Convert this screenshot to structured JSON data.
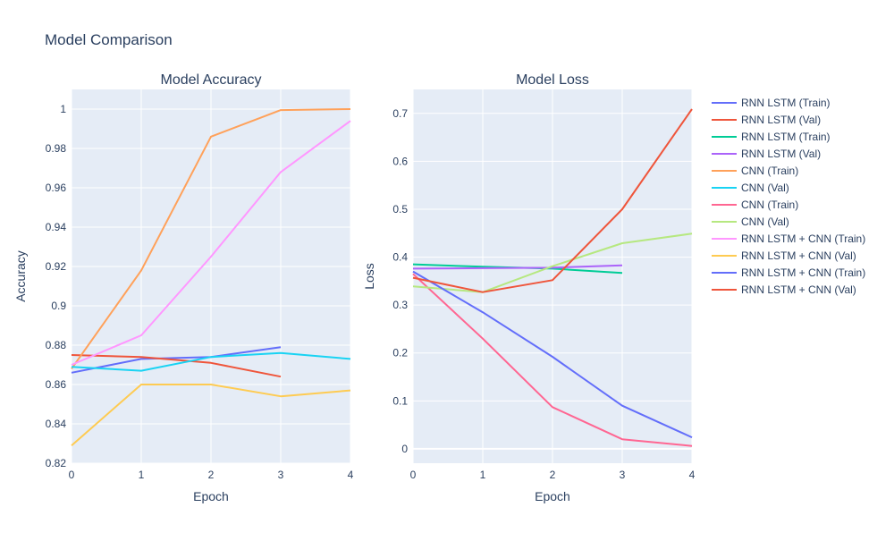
{
  "title": "Model Comparison",
  "colors": {
    "plot_bg": "#e5ecf6",
    "grid": "#ffffff",
    "text": "#2a3f5f"
  },
  "chart_data": [
    {
      "type": "line",
      "title": "Model Accuracy",
      "xlabel": "Epoch",
      "ylabel": "Accuracy",
      "xlim": [
        0,
        4
      ],
      "ylim": [
        0.82,
        1.01
      ],
      "xticks": [
        0,
        1,
        2,
        3,
        4
      ],
      "yticks": [
        0.82,
        0.84,
        0.86,
        0.88,
        0.9,
        0.92,
        0.94,
        0.96,
        0.98,
        1
      ],
      "ytick_labels": [
        "0.82",
        "0.84",
        "0.86",
        "0.88",
        "0.9",
        "0.92",
        "0.94",
        "0.96",
        "0.98",
        "1"
      ],
      "grid": true,
      "series": [
        {
          "name": "RNN LSTM (Train)",
          "color": "#636efa",
          "x": [
            0,
            1,
            2,
            3
          ],
          "y": [
            0.866,
            0.873,
            0.874,
            0.879
          ]
        },
        {
          "name": "RNN LSTM (Val)",
          "color": "#ef553b",
          "x": [
            0,
            1,
            2,
            3
          ],
          "y": [
            0.875,
            0.874,
            0.871,
            0.864
          ]
        },
        {
          "name": "CNN (Train)",
          "color": "#ffa15a",
          "x": [
            0,
            1,
            2,
            3,
            4
          ],
          "y": [
            0.868,
            0.918,
            0.986,
            0.9995,
            1.0
          ]
        },
        {
          "name": "CNN (Val)",
          "color": "#19d3f3",
          "x": [
            0,
            1,
            2,
            3,
            4
          ],
          "y": [
            0.869,
            0.867,
            0.874,
            0.876,
            0.873
          ]
        },
        {
          "name": "RNN LSTM + CNN (Train)",
          "color": "#ff97ff",
          "x": [
            0,
            1,
            2,
            3,
            4
          ],
          "y": [
            0.87,
            0.885,
            0.925,
            0.968,
            0.994
          ]
        },
        {
          "name": "RNN LSTM + CNN (Val)",
          "color": "#fecb52",
          "x": [
            0,
            1,
            2,
            3,
            4
          ],
          "y": [
            0.829,
            0.86,
            0.86,
            0.854,
            0.857
          ]
        }
      ]
    },
    {
      "type": "line",
      "title": "Model Loss",
      "xlabel": "Epoch",
      "ylabel": "Loss",
      "xlim": [
        0,
        4
      ],
      "ylim": [
        -0.03,
        0.75
      ],
      "xticks": [
        0,
        1,
        2,
        3,
        4
      ],
      "yticks": [
        0,
        0.1,
        0.2,
        0.3,
        0.4,
        0.5,
        0.6,
        0.7
      ],
      "ytick_labels": [
        "0",
        "0.1",
        "0.2",
        "0.3",
        "0.4",
        "0.5",
        "0.6",
        "0.7"
      ],
      "grid": true,
      "series": [
        {
          "name": "RNN LSTM (Train)",
          "color": "#00cc96",
          "x": [
            0,
            1,
            2,
            3
          ],
          "y": [
            0.385,
            0.38,
            0.376,
            0.367
          ]
        },
        {
          "name": "RNN LSTM (Val)",
          "color": "#ab63fa",
          "x": [
            0,
            1,
            2,
            3
          ],
          "y": [
            0.376,
            0.377,
            0.378,
            0.383
          ]
        },
        {
          "name": "CNN (Train)",
          "color": "#ff6692",
          "x": [
            0,
            1,
            2,
            3,
            4
          ],
          "y": [
            0.365,
            0.23,
            0.087,
            0.02,
            0.006
          ]
        },
        {
          "name": "CNN (Val)",
          "color": "#b6e880",
          "x": [
            0,
            1,
            2,
            3,
            4
          ],
          "y": [
            0.339,
            0.327,
            0.381,
            0.429,
            0.449
          ]
        },
        {
          "name": "RNN LSTM + CNN (Train)",
          "color": "#636efa",
          "x": [
            0,
            1,
            2,
            3,
            4
          ],
          "y": [
            0.37,
            0.285,
            0.192,
            0.09,
            0.024
          ]
        },
        {
          "name": "RNN LSTM + CNN (Val)",
          "color": "#ef553b",
          "x": [
            0,
            1,
            2,
            3,
            4
          ],
          "y": [
            0.357,
            0.327,
            0.352,
            0.5,
            0.709
          ]
        }
      ]
    }
  ],
  "legend": {
    "placement": "right",
    "items": [
      {
        "label": "RNN LSTM (Train)",
        "color": "#636efa"
      },
      {
        "label": "RNN LSTM (Val)",
        "color": "#ef553b"
      },
      {
        "label": "RNN LSTM (Train)",
        "color": "#00cc96"
      },
      {
        "label": "RNN LSTM (Val)",
        "color": "#ab63fa"
      },
      {
        "label": "CNN (Train)",
        "color": "#ffa15a"
      },
      {
        "label": "CNN (Val)",
        "color": "#19d3f3"
      },
      {
        "label": "CNN (Train)",
        "color": "#ff6692"
      },
      {
        "label": "CNN (Val)",
        "color": "#b6e880"
      },
      {
        "label": "RNN LSTM + CNN (Train)",
        "color": "#ff97ff"
      },
      {
        "label": "RNN LSTM + CNN (Val)",
        "color": "#fecb52"
      },
      {
        "label": "RNN LSTM + CNN (Train)",
        "color": "#636efa"
      },
      {
        "label": "RNN LSTM + CNN (Val)",
        "color": "#ef553b"
      }
    ]
  }
}
